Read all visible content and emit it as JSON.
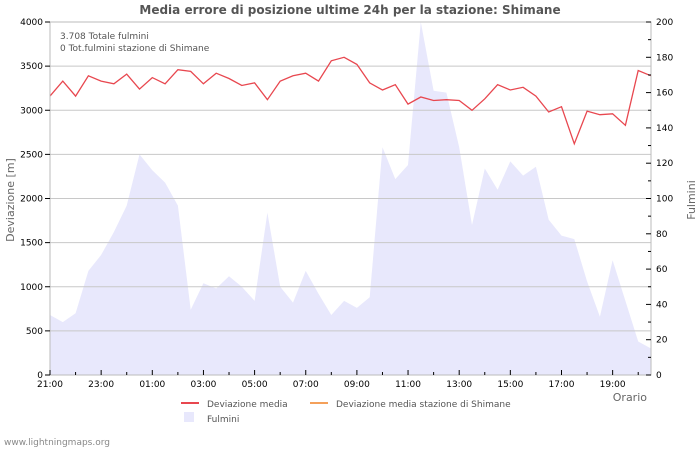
{
  "chart_data": {
    "type": "line",
    "title": "Media errore di posizione ultime 24h per la stazione: Shimane",
    "xlabel": "Orario",
    "ylabel": "Deviazione  [m]",
    "y2label": "Fulmini",
    "ylim": [
      0,
      4000
    ],
    "y2lim": [
      0,
      200
    ],
    "yticks": [
      0,
      500,
      1000,
      1500,
      2000,
      2500,
      3000,
      3500,
      4000
    ],
    "y2ticks": [
      0,
      20,
      40,
      60,
      80,
      100,
      120,
      140,
      160,
      180,
      200
    ],
    "xtick_labels": [
      "21:00",
      "23:00",
      "01:00",
      "03:00",
      "05:00",
      "07:00",
      "09:00",
      "11:00",
      "13:00",
      "15:00",
      "17:00",
      "19:00"
    ],
    "grid": true,
    "legend_position": "bottom",
    "annotations": [
      "3.708 Totale fulmini",
      "0 Tot.fulmini stazione di Shimane"
    ],
    "x": [
      "21:00",
      "21:30",
      "22:00",
      "22:30",
      "23:00",
      "23:30",
      "00:00",
      "00:30",
      "01:00",
      "01:30",
      "02:00",
      "02:30",
      "03:00",
      "03:30",
      "04:00",
      "04:30",
      "05:00",
      "05:30",
      "06:00",
      "06:30",
      "07:00",
      "07:30",
      "08:00",
      "08:30",
      "09:00",
      "09:30",
      "10:00",
      "10:30",
      "11:00",
      "11:30",
      "12:00",
      "12:30",
      "13:00",
      "13:30",
      "14:00",
      "14:30",
      "15:00",
      "15:30",
      "16:00",
      "16:30",
      "17:00",
      "17:30",
      "18:00",
      "18:30",
      "19:00",
      "19:30",
      "20:00",
      "20:30"
    ],
    "series": [
      {
        "name": "Deviazione media",
        "axis": "left",
        "color": "#e8474f",
        "values": [
          3160,
          3330,
          3160,
          3390,
          3330,
          3300,
          3410,
          3240,
          3370,
          3300,
          3460,
          3440,
          3300,
          3420,
          3360,
          3280,
          3310,
          3120,
          3330,
          3390,
          3420,
          3330,
          3560,
          3600,
          3520,
          3310,
          3230,
          3290,
          3070,
          3150,
          3110,
          3120,
          3110,
          3000,
          3130,
          3290,
          3230,
          3260,
          3160,
          2980,
          3040,
          2620,
          2990,
          2950,
          2960,
          2830,
          3450,
          3390
        ]
      },
      {
        "name": "Deviazione media stazione di Shimane",
        "axis": "left",
        "color": "#f4a05a",
        "values": []
      },
      {
        "name": "Fulmini",
        "axis": "right",
        "type": "area",
        "color": "#e8e8fc",
        "values": [
          34,
          30,
          35,
          59,
          68,
          81,
          96,
          125,
          116,
          109,
          96,
          37,
          52,
          49,
          56,
          50,
          42,
          92,
          50,
          41,
          59,
          46,
          34,
          42,
          38,
          44,
          129,
          111,
          119,
          200,
          161,
          160,
          129,
          85,
          117,
          105,
          121,
          113,
          118,
          88,
          79,
          77,
          53,
          33,
          65,
          42,
          19,
          15
        ]
      }
    ]
  },
  "legend": {
    "items": [
      {
        "label": "Deviazione media",
        "color": "#e8474f",
        "kind": "line"
      },
      {
        "label": "Deviazione media stazione di Shimane",
        "color": "#f4a05a",
        "kind": "line"
      },
      {
        "label": "Fulmini",
        "color": "#e8e8fc",
        "kind": "box"
      }
    ]
  },
  "credit": "www.lightningmaps.org"
}
